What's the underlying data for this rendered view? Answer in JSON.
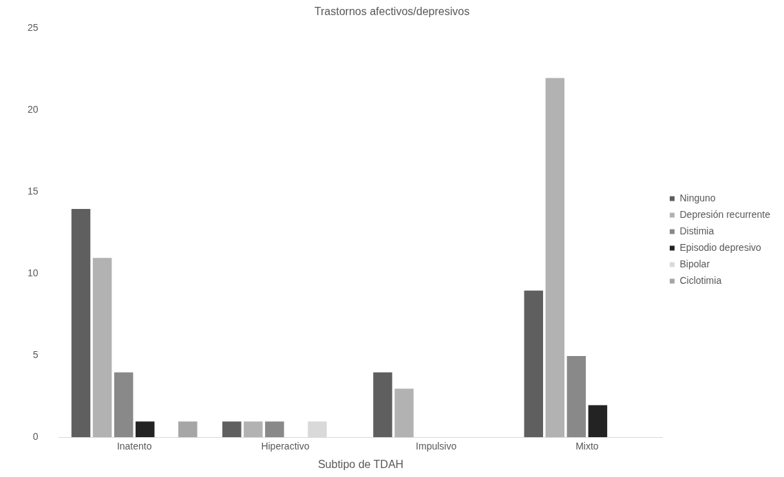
{
  "chart_data": {
    "type": "bar",
    "title": "Trastornos afectivos/depresivos",
    "xlabel": "Subtipo de TDAH",
    "categories": [
      "Inatento",
      "Hiperactivo",
      "Impulsivo",
      "Mixto"
    ],
    "series": [
      {
        "name": "Ninguno",
        "color": "#5f5f5f",
        "values": [
          14,
          1,
          4,
          9
        ]
      },
      {
        "name": "Depresión recurrente",
        "color": "#b2b2b2",
        "values": [
          11,
          1,
          3,
          22
        ]
      },
      {
        "name": "Distimia",
        "color": "#898989",
        "values": [
          4,
          1,
          0,
          5
        ]
      },
      {
        "name": "Episodio depresivo",
        "color": "#232323",
        "values": [
          1,
          0,
          0,
          2
        ]
      },
      {
        "name": "Bipolar",
        "color": "#d9d9d9",
        "values": [
          0,
          1,
          0,
          0
        ]
      },
      {
        "name": "Ciclotimia",
        "color": "#a6a6a6",
        "values": [
          1,
          0,
          0,
          0
        ]
      }
    ],
    "ylim": [
      0,
      25
    ],
    "yticks": [
      0,
      5,
      10,
      15,
      20,
      25
    ],
    "grid": false,
    "legend": "right"
  }
}
